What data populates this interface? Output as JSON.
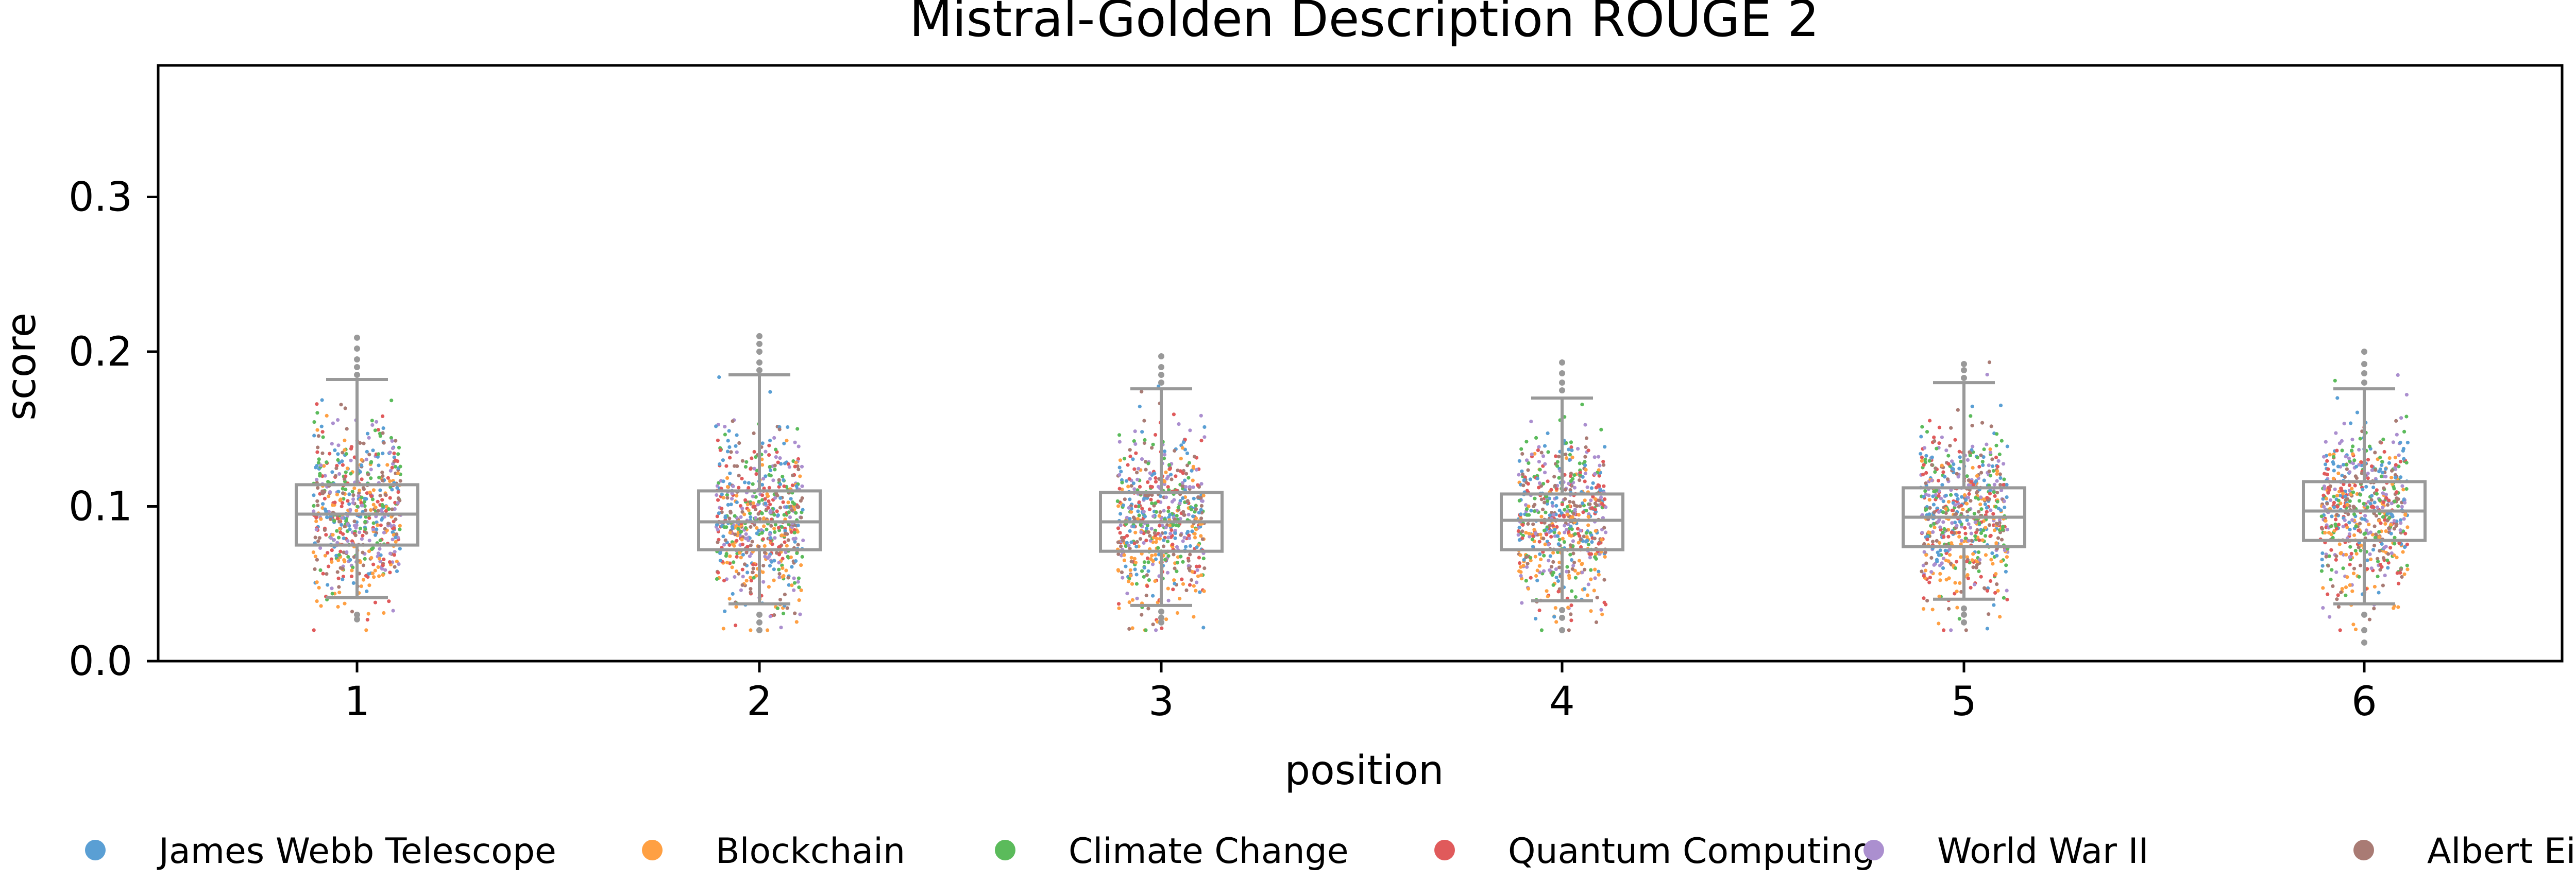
{
  "chart_data": {
    "type": "box-strip",
    "title": "Mistral-Golden Description ROUGE 2",
    "xlabel": "position",
    "ylabel": "score",
    "categories": [
      "1",
      "2",
      "3",
      "4",
      "5",
      "6"
    ],
    "ylim": [
      0.0,
      0.385
    ],
    "yticks": [
      0.0,
      0.1,
      0.2,
      0.3
    ],
    "ytick_labels": [
      "0.0",
      "0.1",
      "0.2",
      "0.3"
    ],
    "grid": false,
    "legend_position": "bottom",
    "series": [
      {
        "name": "James Webb Telescope",
        "color": "#5a9fd4"
      },
      {
        "name": "Blockchain",
        "color": "#ffa043"
      },
      {
        "name": "Climate Change",
        "color": "#5bbb5b"
      },
      {
        "name": "Quantum Computing",
        "color": "#e05a5b"
      },
      {
        "name": "World War II",
        "color": "#ab8fcf"
      },
      {
        "name": "Albert Einstein",
        "color": "#a97b74"
      }
    ],
    "box_color": "#999999",
    "boxes": [
      {
        "position": "1",
        "whisker_low": 0.041,
        "q1": 0.075,
        "median": 0.095,
        "q3": 0.114,
        "whisker_high": 0.182,
        "outliers": [
          0.03,
          0.027,
          0.185,
          0.19,
          0.195,
          0.202,
          0.209
        ]
      },
      {
        "position": "2",
        "whisker_low": 0.037,
        "q1": 0.072,
        "median": 0.09,
        "q3": 0.11,
        "whisker_high": 0.185,
        "outliers": [
          0.03,
          0.025,
          0.02,
          0.188,
          0.193,
          0.2,
          0.205,
          0.21
        ]
      },
      {
        "position": "3",
        "whisker_low": 0.036,
        "q1": 0.071,
        "median": 0.09,
        "q3": 0.109,
        "whisker_high": 0.176,
        "outliers": [
          0.032,
          0.028,
          0.025,
          0.18,
          0.185,
          0.19,
          0.197
        ]
      },
      {
        "position": "4",
        "whisker_low": 0.039,
        "q1": 0.072,
        "median": 0.091,
        "q3": 0.108,
        "whisker_high": 0.17,
        "outliers": [
          0.033,
          0.028,
          0.02,
          0.175,
          0.18,
          0.186,
          0.193
        ]
      },
      {
        "position": "5",
        "whisker_low": 0.04,
        "q1": 0.074,
        "median": 0.093,
        "q3": 0.112,
        "whisker_high": 0.18,
        "outliers": [
          0.034,
          0.03,
          0.025,
          0.183,
          0.188,
          0.192
        ]
      },
      {
        "position": "6",
        "whisker_low": 0.037,
        "q1": 0.078,
        "median": 0.097,
        "q3": 0.116,
        "whisker_high": 0.176,
        "outliers": [
          0.03,
          0.02,
          0.012,
          0.18,
          0.186,
          0.192,
          0.2
        ]
      }
    ],
    "strip": {
      "points_per_series_per_position": 100,
      "spread_range": [
        0.02,
        0.21
      ],
      "series_means": [
        0.101,
        0.08,
        0.095,
        0.094,
        0.097,
        0.096
      ],
      "series_sd": 0.027
    }
  }
}
